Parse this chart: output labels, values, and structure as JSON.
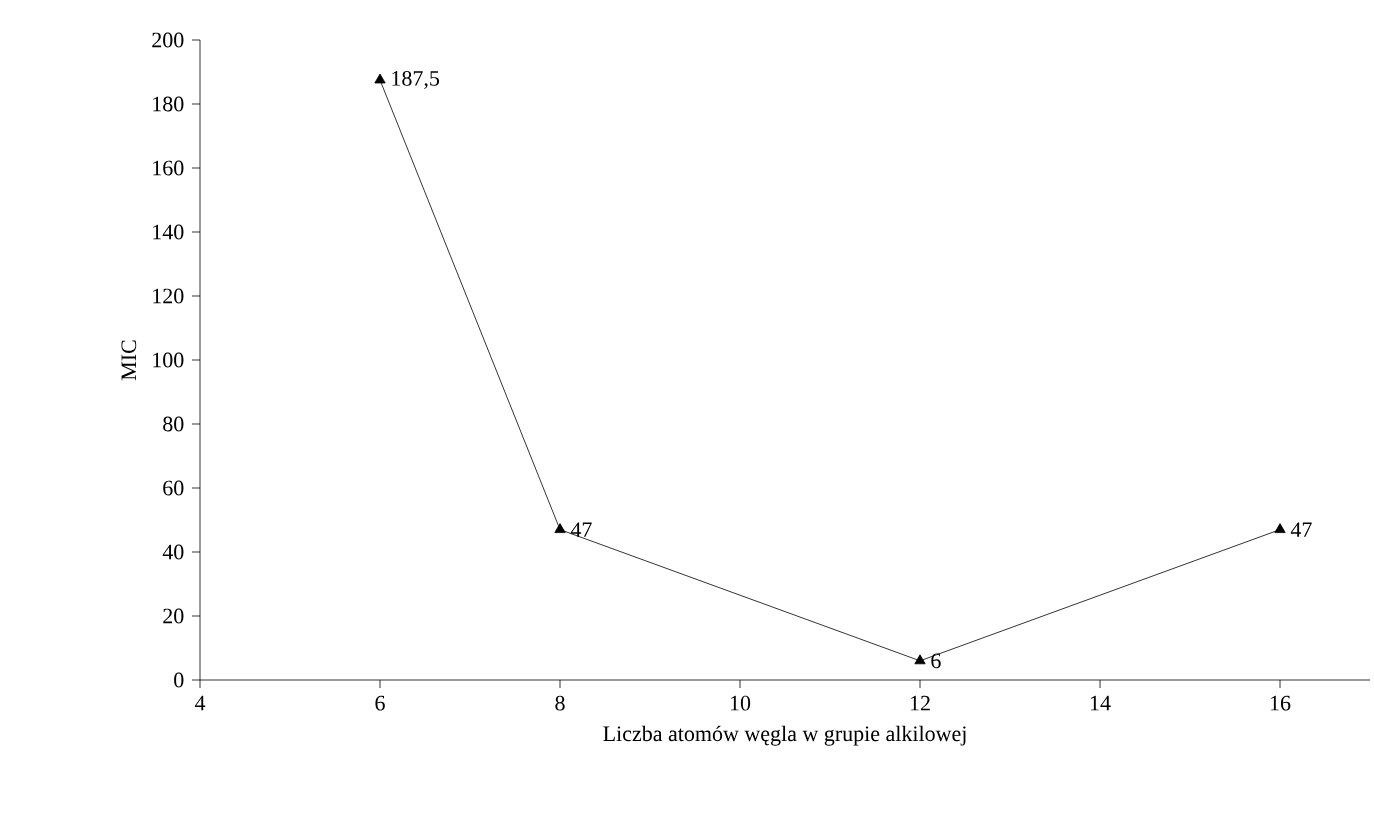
{
  "chart_data": {
    "type": "line",
    "xlabel": "Liczba atomów węgla w grupie alkilowej",
    "ylabel": "MIC",
    "x": [
      6,
      8,
      12,
      16
    ],
    "series": [
      {
        "color": "#000000",
        "values": [
          187.5,
          47,
          6,
          47
        ],
        "value_labels": [
          "187,5",
          "47",
          "6",
          "47"
        ]
      }
    ],
    "xlim": [
      4,
      17
    ],
    "xticks": [
      4,
      6,
      8,
      10,
      12,
      14,
      16
    ],
    "ylim": [
      0,
      200
    ],
    "yticks": [
      0,
      20,
      40,
      60,
      80,
      100,
      120,
      140,
      160,
      180,
      200
    ],
    "grid": false,
    "marker": "triangle",
    "line_style": "solid"
  }
}
